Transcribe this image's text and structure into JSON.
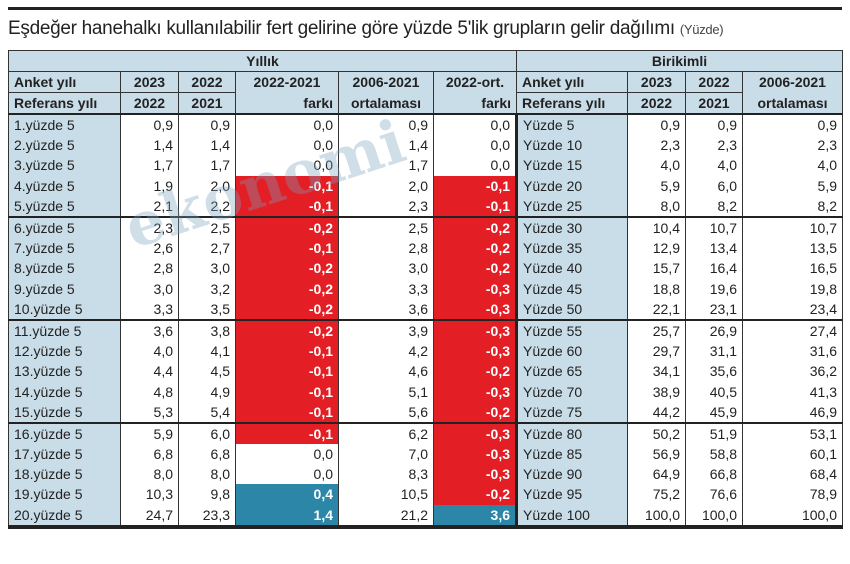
{
  "title": "Eşdeğer hanehalkı kullanılabilir fert gelirine göre yüzde 5'lik grupların gelir dağılımı",
  "unit": "(Yüzde)",
  "watermark": "ekonomi",
  "colors": {
    "negative": "#e31e24",
    "positive": "#2b86a8",
    "header": "#c9dde8"
  },
  "yillik": {
    "section": "Yıllık",
    "h1": [
      "Anket yılı",
      "2023",
      "2022",
      "2022-2021",
      "2006-2021",
      "2022-ort."
    ],
    "h2": [
      "Referans yılı",
      "2022",
      "2021",
      "farkı",
      "ortalaması",
      "farkı"
    ],
    "rows": [
      [
        "1.yüzde 5",
        "0,9",
        "0,9",
        "0,0",
        "0,9",
        "0,0"
      ],
      [
        "2.yüzde 5",
        "1,4",
        "1,4",
        "0,0",
        "1,4",
        "0,0"
      ],
      [
        "3.yüzde 5",
        "1,7",
        "1,7",
        "0,0",
        "1,7",
        "0,0"
      ],
      [
        "4.yüzde 5",
        "1,9",
        "2,0",
        "-0,1",
        "2,0",
        "-0,1"
      ],
      [
        "5.yüzde 5",
        "2,1",
        "2,2",
        "-0,1",
        "2,3",
        "-0,1"
      ],
      [
        "6.yüzde 5",
        "2,3",
        "2,5",
        "-0,2",
        "2,5",
        "-0,2"
      ],
      [
        "7.yüzde 5",
        "2,6",
        "2,7",
        "-0,1",
        "2,8",
        "-0,2"
      ],
      [
        "8.yüzde 5",
        "2,8",
        "3,0",
        "-0,2",
        "3,0",
        "-0,2"
      ],
      [
        "9.yüzde 5",
        "3,0",
        "3,2",
        "-0,2",
        "3,3",
        "-0,3"
      ],
      [
        "10.yüzde 5",
        "3,3",
        "3,5",
        "-0,2",
        "3,6",
        "-0,3"
      ],
      [
        "11.yüzde 5",
        "3,6",
        "3,8",
        "-0,2",
        "3,9",
        "-0,3"
      ],
      [
        "12.yüzde 5",
        "4,0",
        "4,1",
        "-0,1",
        "4,2",
        "-0,3"
      ],
      [
        "13.yüzde 5",
        "4,4",
        "4,5",
        "-0,1",
        "4,6",
        "-0,2"
      ],
      [
        "14.yüzde 5",
        "4,8",
        "4,9",
        "-0,1",
        "5,1",
        "-0,3"
      ],
      [
        "15.yüzde 5",
        "5,3",
        "5,4",
        "-0,1",
        "5,6",
        "-0,2"
      ],
      [
        "16.yüzde 5",
        "5,9",
        "6,0",
        "-0,1",
        "6,2",
        "-0,3"
      ],
      [
        "17.yüzde 5",
        "6,8",
        "6,8",
        "0,0",
        "7,0",
        "-0,3"
      ],
      [
        "18.yüzde 5",
        "8,0",
        "8,0",
        "0,0",
        "8,3",
        "-0,3"
      ],
      [
        "19.yüzde 5",
        "10,3",
        "9,8",
        "0,4",
        "10,5",
        "-0,2"
      ],
      [
        "20.yüzde 5",
        "24,7",
        "23,3",
        "1,4",
        "21,2",
        "3,6"
      ]
    ]
  },
  "birikimli": {
    "section": "Birikimli",
    "h1": [
      "Anket yılı",
      "2023",
      "2022",
      "2006-2021"
    ],
    "h2": [
      "Referans yılı",
      "2022",
      "2021",
      "ortalaması"
    ],
    "rows": [
      [
        "Yüzde 5",
        "0,9",
        "0,9",
        "0,9"
      ],
      [
        "Yüzde 10",
        "2,3",
        "2,3",
        "2,3"
      ],
      [
        "Yüzde 15",
        "4,0",
        "4,0",
        "4,0"
      ],
      [
        "Yüzde 20",
        "5,9",
        "6,0",
        "5,9"
      ],
      [
        "Yüzde 25",
        "8,0",
        "8,2",
        "8,2"
      ],
      [
        "Yüzde 30",
        "10,4",
        "10,7",
        "10,7"
      ],
      [
        "Yüzde 35",
        "12,9",
        "13,4",
        "13,5"
      ],
      [
        "Yüzde 40",
        "15,7",
        "16,4",
        "16,5"
      ],
      [
        "Yüzde 45",
        "18,8",
        "19,6",
        "19,8"
      ],
      [
        "Yüzde 50",
        "22,1",
        "23,1",
        "23,4"
      ],
      [
        "Yüzde 55",
        "25,7",
        "26,9",
        "27,4"
      ],
      [
        "Yüzde 60",
        "29,7",
        "31,1",
        "31,6"
      ],
      [
        "Yüzde 65",
        "34,1",
        "35,6",
        "36,2"
      ],
      [
        "Yüzde 70",
        "38,9",
        "40,5",
        "41,3"
      ],
      [
        "Yüzde 75",
        "44,2",
        "45,9",
        "46,9"
      ],
      [
        "Yüzde 80",
        "50,2",
        "51,9",
        "53,1"
      ],
      [
        "Yüzde 85",
        "56,9",
        "58,8",
        "60,1"
      ],
      [
        "Yüzde 90",
        "64,9",
        "66,8",
        "68,4"
      ],
      [
        "Yüzde 95",
        "75,2",
        "76,6",
        "78,9"
      ],
      [
        "Yüzde 100",
        "100,0",
        "100,0",
        "100,0"
      ]
    ]
  },
  "chart_data": {
    "type": "table",
    "title": "Eşdeğer hanehalkı kullanılabilir fert gelirine göre yüzde 5'lik grupların gelir dağılımı",
    "unit": "(Yüzde)"
  }
}
